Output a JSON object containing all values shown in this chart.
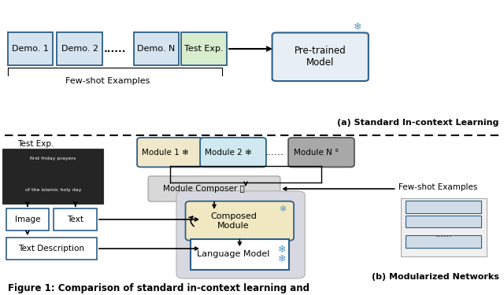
{
  "bg_color": "#ffffff",
  "demo_box_color": "#d6e4f0",
  "test_exp_color": "#d8edcd",
  "pretrained_box_color": "#e8eef5",
  "pretrained_edge": "#2c5f8a",
  "demo_edge": "#2c5f8a",
  "module1_color": "#f0e8c8",
  "module2_color": "#d0e8f0",
  "moduleN_color": "#a8a8a8",
  "moduleN_edge": "#555555",
  "composer_color": "#d8d8d8",
  "composer_edge": "#aaaaaa",
  "composed_color": "#f0e8c0",
  "composed_edge": "#2c5f8a",
  "lm_color": "#ffffff",
  "lm_edge": "#2c5f8a",
  "lm_bg_color": "#d8d8e0",
  "fewshot_right_color": "#d0dce8",
  "fewshot_right_edge": "#2c5f8a",
  "fewshot_outer_color": "#f0f0f0",
  "fewshot_outer_edge": "#aaaaaa",
  "image_box_color": "#ffffff",
  "image_box_edge": "#2c5f8a",
  "text_desc_color": "#1a1a1a",
  "snowflake_color": "#5599cc",
  "section_a": "(a) Standard In-context Learning",
  "section_b": "(b) Modularized Networks",
  "fig_caption": "Figure 1: Comparison of standard in-context learning and"
}
